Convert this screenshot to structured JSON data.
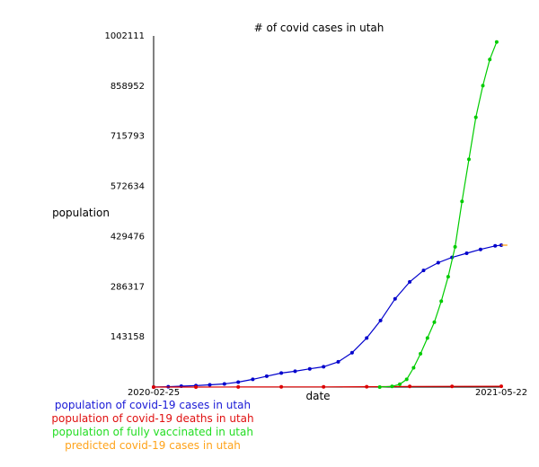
{
  "chart_data": {
    "type": "line",
    "title": "# of covid cases in utah",
    "xlabel": "date",
    "ylabel": "population",
    "x_ticks": [
      "2020-02-25",
      "2021-05-22"
    ],
    "y_ticks": [
      143158,
      286317,
      429476,
      572634,
      715793,
      858952,
      1002111
    ],
    "ylim": [
      0,
      1002111
    ],
    "xlim": [
      "2020-02-25",
      "2021-05-22"
    ],
    "grid": false,
    "legend_position": "bottom-left",
    "series": [
      {
        "name": "population of covid-19 cases in utah",
        "color": "#0000cc",
        "markers": true,
        "points": [
          [
            "2020-02-25",
            0
          ],
          [
            "2020-03-15",
            1000
          ],
          [
            "2020-04-01",
            2500
          ],
          [
            "2020-04-20",
            4000
          ],
          [
            "2020-05-08",
            6500
          ],
          [
            "2020-05-27",
            9000
          ],
          [
            "2020-06-14",
            14000
          ],
          [
            "2020-07-03",
            22000
          ],
          [
            "2020-07-21",
            31000
          ],
          [
            "2020-08-09",
            40000
          ],
          [
            "2020-08-27",
            45000
          ],
          [
            "2020-09-15",
            52000
          ],
          [
            "2020-10-03",
            58000
          ],
          [
            "2020-10-22",
            72000
          ],
          [
            "2020-11-09",
            98000
          ],
          [
            "2020-11-28",
            140000
          ],
          [
            "2020-12-16",
            190000
          ],
          [
            "2021-01-04",
            252000
          ],
          [
            "2021-01-23",
            300000
          ],
          [
            "2021-02-10",
            333000
          ],
          [
            "2021-03-01",
            355000
          ],
          [
            "2021-03-19",
            370000
          ],
          [
            "2021-04-07",
            382000
          ],
          [
            "2021-04-25",
            393000
          ],
          [
            "2021-05-14",
            403000
          ],
          [
            "2021-05-22",
            405000
          ]
        ]
      },
      {
        "name": "population of covid-19 deaths in utah",
        "color": "#dd0000",
        "markers": true,
        "points": [
          [
            "2020-02-25",
            0
          ],
          [
            "2020-04-20",
            50
          ],
          [
            "2020-06-14",
            150
          ],
          [
            "2020-08-09",
            400
          ],
          [
            "2020-10-03",
            600
          ],
          [
            "2020-11-28",
            1000
          ],
          [
            "2021-01-23",
            1700
          ],
          [
            "2021-03-19",
            2100
          ],
          [
            "2021-05-22",
            2300
          ]
        ]
      },
      {
        "name": "population of fully vaccinated in utah",
        "color": "#00cc00",
        "markers": true,
        "points": [
          [
            "2020-12-15",
            0
          ],
          [
            "2020-12-31",
            2000
          ],
          [
            "2021-01-10",
            8000
          ],
          [
            "2021-01-19",
            22000
          ],
          [
            "2021-01-28",
            55000
          ],
          [
            "2021-02-06",
            95000
          ],
          [
            "2021-02-15",
            140000
          ],
          [
            "2021-02-24",
            185000
          ],
          [
            "2021-03-05",
            245000
          ],
          [
            "2021-03-14",
            315000
          ],
          [
            "2021-03-23",
            400000
          ],
          [
            "2021-04-01",
            530000
          ],
          [
            "2021-04-10",
            650000
          ],
          [
            "2021-04-19",
            770000
          ],
          [
            "2021-04-28",
            860000
          ],
          [
            "2021-05-07",
            935000
          ],
          [
            "2021-05-16",
            985000
          ]
        ]
      },
      {
        "name": "predicted covid-19 cases in utah",
        "color": "#ff9900",
        "markers": false,
        "points": [
          [
            "2021-05-22",
            405000
          ],
          [
            "2021-05-30",
            405000
          ]
        ]
      }
    ]
  }
}
